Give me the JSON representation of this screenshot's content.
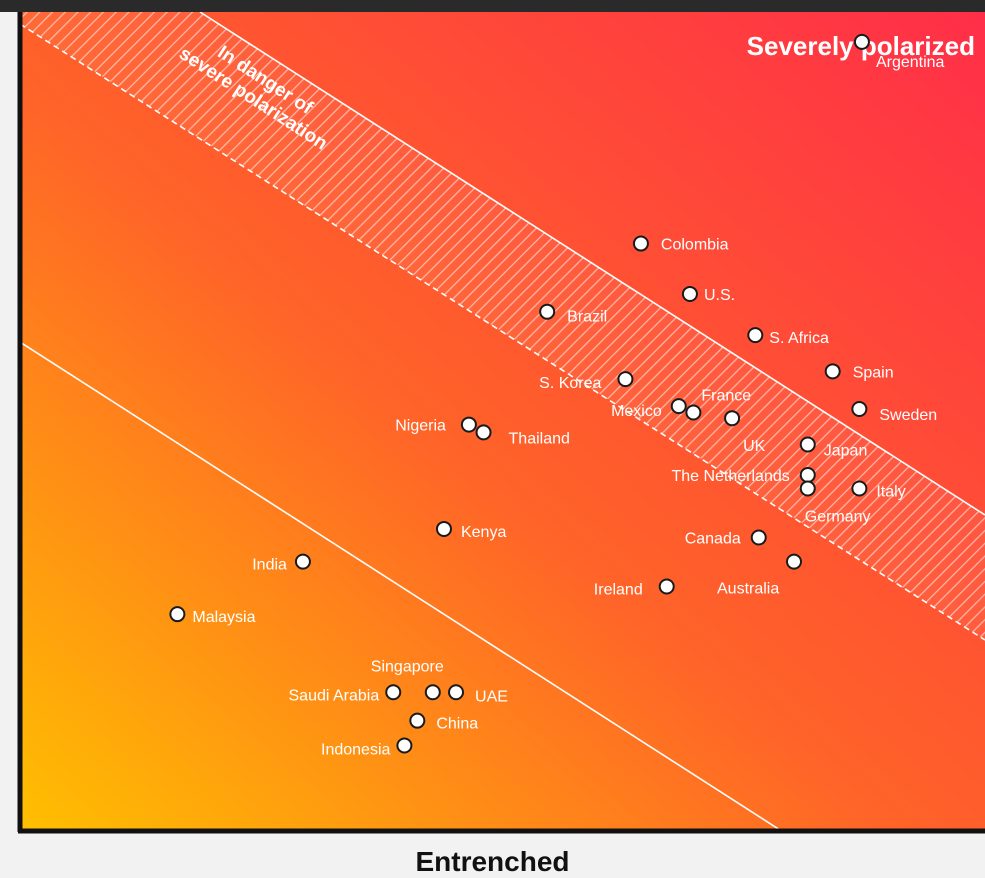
{
  "chart_data": {
    "type": "scatter",
    "title": "",
    "xlabel": "Entrenched",
    "ylabel": "",
    "zones": {
      "severe": "Severely polarized",
      "danger": "In danger of severe polarization"
    },
    "points": [
      {
        "label": "Argentina",
        "x": 9.79,
        "y": 11.1
      },
      {
        "label": "Colombia",
        "x": 7.22,
        "y": 8.26
      },
      {
        "label": "U.S.",
        "x": 7.79,
        "y": 7.55
      },
      {
        "label": "Brazil",
        "x": 6.13,
        "y": 7.3
      },
      {
        "label": "S. Africa",
        "x": 8.55,
        "y": 6.97
      },
      {
        "label": "Spain",
        "x": 9.45,
        "y": 6.46
      },
      {
        "label": "S. Korea",
        "x": 7.04,
        "y": 6.35
      },
      {
        "label": "Mexico",
        "x": 7.66,
        "y": 5.97
      },
      {
        "label": "France",
        "x": 7.83,
        "y": 5.88
      },
      {
        "label": "UK",
        "x": 8.28,
        "y": 5.8
      },
      {
        "label": "Sweden",
        "x": 9.76,
        "y": 5.93
      },
      {
        "label": "Nigeria",
        "x": 5.22,
        "y": 5.71
      },
      {
        "label": "Thailand",
        "x": 5.39,
        "y": 5.6
      },
      {
        "label": "Japan",
        "x": 9.16,
        "y": 5.43
      },
      {
        "label": "The Netherlands",
        "x": 9.16,
        "y": 5.0
      },
      {
        "label": "Germany",
        "x": 9.16,
        "y": 4.81
      },
      {
        "label": "Italy",
        "x": 9.76,
        "y": 4.81
      },
      {
        "label": "Kenya",
        "x": 4.93,
        "y": 4.24
      },
      {
        "label": "Canada",
        "x": 8.59,
        "y": 4.12
      },
      {
        "label": "India",
        "x": 3.29,
        "y": 3.78
      },
      {
        "label": "Australia",
        "x": 9.0,
        "y": 3.78
      },
      {
        "label": "Ireland",
        "x": 7.52,
        "y": 3.43
      },
      {
        "label": "Malaysia",
        "x": 1.83,
        "y": 3.04
      },
      {
        "label": "Singapore",
        "x": 4.8,
        "y": 1.94
      },
      {
        "label": "Saudi Arabia",
        "x": 4.34,
        "y": 1.94
      },
      {
        "label": "UAE",
        "x": 5.07,
        "y": 1.94
      },
      {
        "label": "China",
        "x": 4.62,
        "y": 1.54
      },
      {
        "label": "Indonesia",
        "x": 4.47,
        "y": 1.19
      }
    ]
  }
}
